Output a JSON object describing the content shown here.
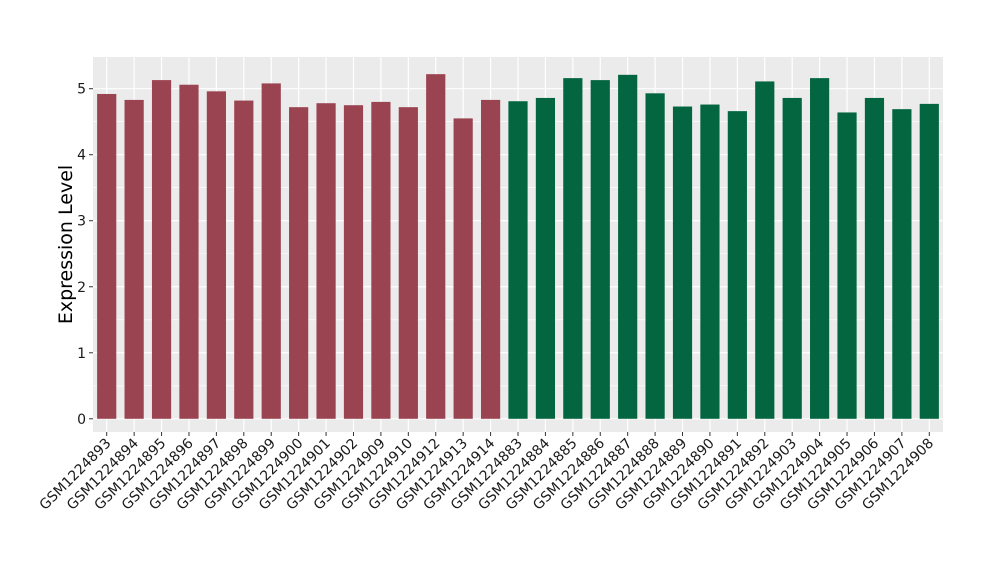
{
  "chart_data": {
    "type": "bar",
    "ylabel": "Expression Level",
    "xlabel": "",
    "ylim": [
      -0.2,
      5.48
    ],
    "yticks": [
      0,
      1,
      2,
      3,
      4,
      5
    ],
    "grid": true,
    "legend": "none",
    "colors": {
      "group_a": "#9a4351",
      "group_b": "#036641",
      "panel": "#ebebeb",
      "grid": "#ffffff"
    },
    "categories": [
      "GSM1224893",
      "GSM1224894",
      "GSM1224895",
      "GSM1224896",
      "GSM1224897",
      "GSM1224898",
      "GSM1224899",
      "GSM1224900",
      "GSM1224901",
      "GSM1224902",
      "GSM1224909",
      "GSM1224910",
      "GSM1224912",
      "GSM1224913",
      "GSM1224914",
      "GSM1224883",
      "GSM1224884",
      "GSM1224885",
      "GSM1224886",
      "GSM1224887",
      "GSM1224888",
      "GSM1224889",
      "GSM1224890",
      "GSM1224891",
      "GSM1224892",
      "GSM1224903",
      "GSM1224904",
      "GSM1224905",
      "GSM1224906",
      "GSM1224907",
      "GSM1224908"
    ],
    "values": [
      4.92,
      4.83,
      5.13,
      5.06,
      4.96,
      4.82,
      5.08,
      4.72,
      4.78,
      4.75,
      4.8,
      4.72,
      5.22,
      4.55,
      4.83,
      4.81,
      4.86,
      5.16,
      5.13,
      5.21,
      4.93,
      4.73,
      4.76,
      4.66,
      5.11,
      4.86,
      5.16,
      4.64,
      4.86,
      4.69,
      4.77
    ],
    "groups": [
      "a",
      "a",
      "a",
      "a",
      "a",
      "a",
      "a",
      "a",
      "a",
      "a",
      "a",
      "a",
      "a",
      "a",
      "a",
      "b",
      "b",
      "b",
      "b",
      "b",
      "b",
      "b",
      "b",
      "b",
      "b",
      "b",
      "b",
      "b",
      "b",
      "b",
      "b"
    ]
  }
}
